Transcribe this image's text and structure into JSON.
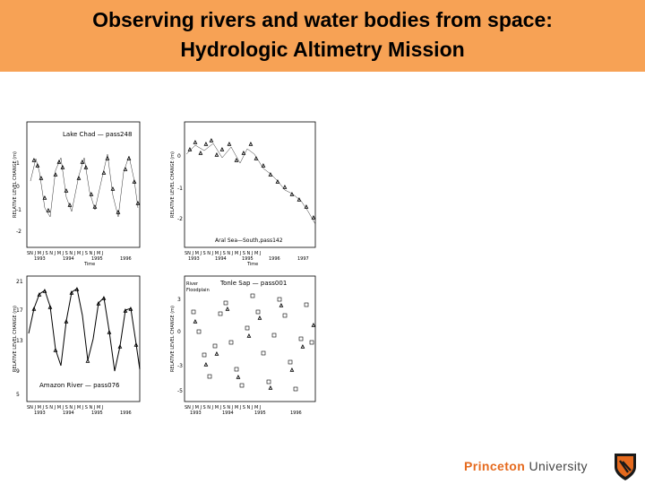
{
  "slide": {
    "title_line1": "Observing rivers and water bodies from space:",
    "title_line2": "Hydrologic Altimetry Mission",
    "colors": {
      "header_bg": "#f7a255",
      "brand_orange": "#e56a1e"
    }
  },
  "figure": {
    "y_axis_label": "RELATIVE LEVEL CHANGE (m)",
    "x_axis_label": "Time",
    "month_ticks": "SN J M J S N J M J S N J M J S N J M J",
    "panels": [
      {
        "label": "Lake Chad — pass248",
        "years": [
          "1993",
          "1994",
          "1995",
          "1996"
        ]
      },
      {
        "label": "Aral Sea—South,pass142",
        "years": [
          "1993",
          "1994",
          "1995",
          "1996",
          "1997"
        ]
      },
      {
        "label": "Amazon River — pass076",
        "years": [
          "1993",
          "1994",
          "1995",
          "1996"
        ]
      },
      {
        "label": "Tonle Sap — pass001",
        "years": [
          "1993",
          "1994",
          "1995",
          "1996"
        ],
        "legend": [
          "River",
          "Floodplain"
        ]
      }
    ]
  },
  "footer": {
    "princeton": "Princeton",
    "university": "University"
  }
}
